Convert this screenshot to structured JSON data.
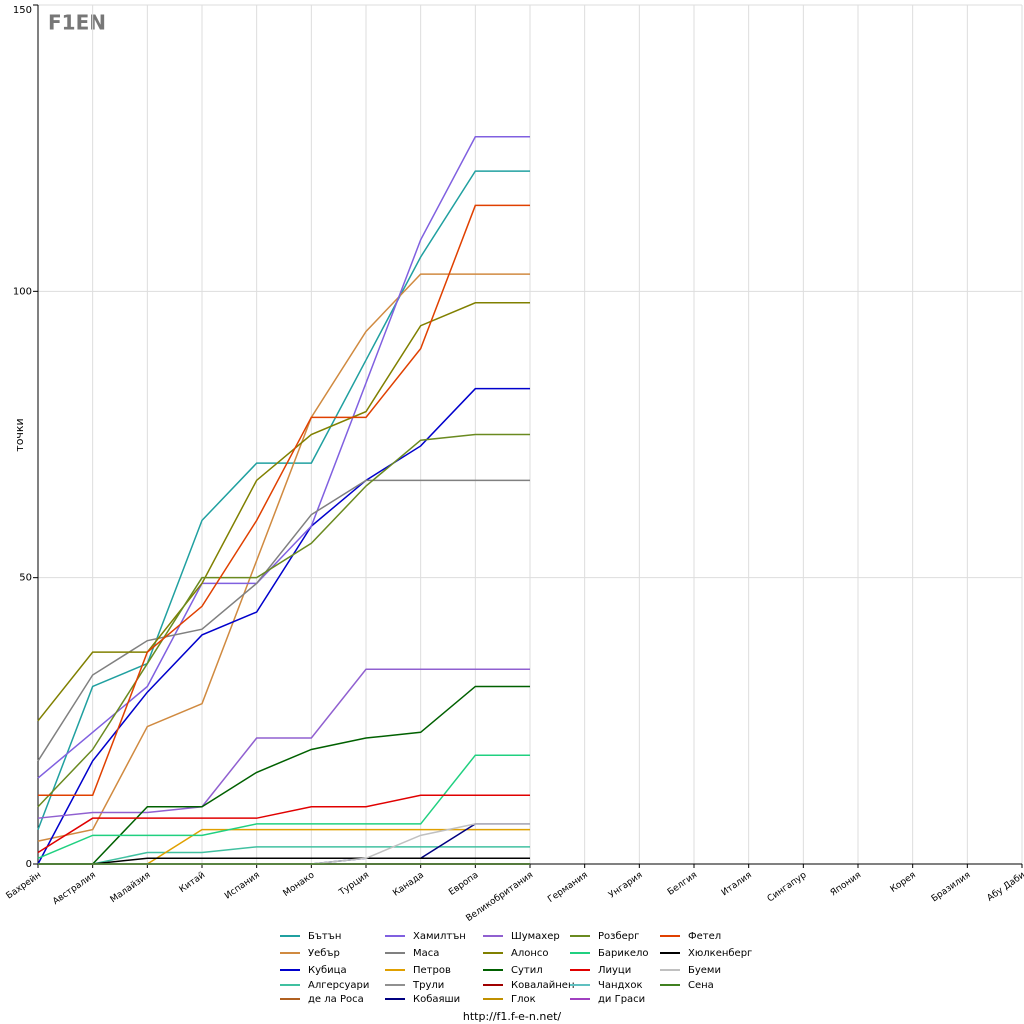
{
  "chart_data": {
    "type": "line",
    "logo": "F1EN",
    "y_label": "точки",
    "footer": "http://f1.f-e-n.net/",
    "categories": [
      "Бахрейн",
      "Австралия",
      "Малайзия",
      "Китай",
      "Испания",
      "Монако",
      "Турция",
      "Канада",
      "Европа",
      "Великобритания",
      "Германия",
      "Унгария",
      "Белгия",
      "Италия",
      "Сингапур",
      "Япония",
      "Корея",
      "Бразилия",
      "Абу Даби"
    ],
    "ylim": [
      0,
      150
    ],
    "yticks": [
      0,
      50,
      100,
      150
    ],
    "grid": true,
    "series": [
      {
        "name": "Бътън",
        "color": "#20a0a0",
        "values": [
          6,
          31,
          35,
          60,
          70,
          70,
          88,
          106,
          121,
          121,
          null,
          null,
          null,
          null,
          null,
          null,
          null,
          null,
          null
        ]
      },
      {
        "name": "Уебър",
        "color": "#d08a40",
        "values": [
          4,
          6,
          24,
          28,
          53,
          78,
          93,
          103,
          103,
          103,
          null,
          null,
          null,
          null,
          null,
          null,
          null,
          null,
          null
        ]
      },
      {
        "name": "Кубица",
        "color": "#0000cc",
        "values": [
          0,
          18,
          30,
          40,
          44,
          59,
          67,
          73,
          83,
          83,
          null,
          null,
          null,
          null,
          null,
          null,
          null,
          null,
          null
        ]
      },
      {
        "name": "Алгерсуари",
        "color": "#40c0a0",
        "values": [
          0,
          0,
          2,
          2,
          3,
          3,
          3,
          3,
          3,
          3,
          null,
          null,
          null,
          null,
          null,
          null,
          null,
          null,
          null
        ]
      },
      {
        "name": "де ла Роса",
        "color": "#b06020",
        "values": [
          0,
          0,
          0,
          0,
          0,
          0,
          0,
          0,
          0,
          0,
          null,
          null,
          null,
          null,
          null,
          null,
          null,
          null,
          null
        ]
      },
      {
        "name": "Хамилтън",
        "color": "#8060e0",
        "values": [
          15,
          23,
          31,
          49,
          49,
          59,
          84,
          109,
          127,
          127,
          null,
          null,
          null,
          null,
          null,
          null,
          null,
          null,
          null
        ]
      },
      {
        "name": "Маса",
        "color": "#808080",
        "values": [
          18,
          33,
          39,
          41,
          49,
          61,
          67,
          67,
          67,
          67,
          null,
          null,
          null,
          null,
          null,
          null,
          null,
          null,
          null
        ]
      },
      {
        "name": "Петров",
        "color": "#e0a000",
        "values": [
          0,
          0,
          0,
          6,
          6,
          6,
          6,
          6,
          6,
          6,
          null,
          null,
          null,
          null,
          null,
          null,
          null,
          null,
          null
        ]
      },
      {
        "name": "Трули",
        "color": "#909090",
        "values": [
          0,
          0,
          0,
          0,
          0,
          0,
          0,
          0,
          0,
          0,
          null,
          null,
          null,
          null,
          null,
          null,
          null,
          null,
          null
        ]
      },
      {
        "name": "Кобаяши",
        "color": "#000080",
        "values": [
          0,
          0,
          0,
          0,
          0,
          0,
          1,
          1,
          7,
          7,
          null,
          null,
          null,
          null,
          null,
          null,
          null,
          null,
          null
        ]
      },
      {
        "name": "Шумахер",
        "color": "#9060d0",
        "values": [
          8,
          9,
          9,
          10,
          22,
          22,
          34,
          34,
          34,
          34,
          null,
          null,
          null,
          null,
          null,
          null,
          null,
          null,
          null
        ]
      },
      {
        "name": "Алонсо",
        "color": "#808000",
        "values": [
          25,
          37,
          37,
          49,
          67,
          75,
          79,
          94,
          98,
          98,
          null,
          null,
          null,
          null,
          null,
          null,
          null,
          null,
          null
        ]
      },
      {
        "name": "Сутил",
        "color": "#006000",
        "values": [
          0,
          0,
          10,
          10,
          16,
          20,
          22,
          23,
          31,
          31,
          null,
          null,
          null,
          null,
          null,
          null,
          null,
          null,
          null
        ]
      },
      {
        "name": "Ковалайнен",
        "color": "#a00000",
        "values": [
          0,
          0,
          0,
          0,
          0,
          0,
          0,
          0,
          0,
          0,
          null,
          null,
          null,
          null,
          null,
          null,
          null,
          null,
          null
        ]
      },
      {
        "name": "Глок",
        "color": "#c09000",
        "values": [
          0,
          0,
          0,
          0,
          0,
          0,
          0,
          0,
          0,
          0,
          null,
          null,
          null,
          null,
          null,
          null,
          null,
          null,
          null
        ]
      },
      {
        "name": "Розберг",
        "color": "#6a8a20",
        "values": [
          10,
          20,
          35,
          50,
          50,
          56,
          66,
          74,
          75,
          75,
          null,
          null,
          null,
          null,
          null,
          null,
          null,
          null,
          null
        ]
      },
      {
        "name": "Барикело",
        "color": "#20d080",
        "values": [
          1,
          5,
          5,
          5,
          7,
          7,
          7,
          7,
          19,
          19,
          null,
          null,
          null,
          null,
          null,
          null,
          null,
          null,
          null
        ]
      },
      {
        "name": "Лиуци",
        "color": "#e00000",
        "values": [
          2,
          8,
          8,
          8,
          8,
          10,
          10,
          12,
          12,
          12,
          null,
          null,
          null,
          null,
          null,
          null,
          null,
          null,
          null
        ]
      },
      {
        "name": "Чандхок",
        "color": "#60c0c0",
        "values": [
          0,
          0,
          0,
          0,
          0,
          0,
          0,
          0,
          0,
          0,
          null,
          null,
          null,
          null,
          null,
          null,
          null,
          null,
          null
        ]
      },
      {
        "name": "ди Граси",
        "color": "#a040c0",
        "values": [
          0,
          0,
          0,
          0,
          0,
          0,
          0,
          0,
          0,
          0,
          null,
          null,
          null,
          null,
          null,
          null,
          null,
          null,
          null
        ]
      },
      {
        "name": "Фетел",
        "color": "#e04000",
        "values": [
          12,
          12,
          37,
          45,
          60,
          78,
          78,
          90,
          115,
          115,
          null,
          null,
          null,
          null,
          null,
          null,
          null,
          null,
          null
        ]
      },
      {
        "name": "Хюлкенберг",
        "color": "#000000",
        "values": [
          0,
          0,
          1,
          1,
          1,
          1,
          1,
          1,
          1,
          1,
          null,
          null,
          null,
          null,
          null,
          null,
          null,
          null,
          null
        ]
      },
      {
        "name": "Буеми",
        "color": "#c0c0c0",
        "values": [
          0,
          0,
          0,
          0,
          0,
          0,
          1,
          5,
          7,
          7,
          null,
          null,
          null,
          null,
          null,
          null,
          null,
          null,
          null
        ]
      },
      {
        "name": "Сена",
        "color": "#408020",
        "values": [
          0,
          0,
          0,
          0,
          0,
          0,
          0,
          0,
          0,
          0,
          null,
          null,
          null,
          null,
          null,
          null,
          null,
          null,
          null
        ]
      }
    ]
  }
}
